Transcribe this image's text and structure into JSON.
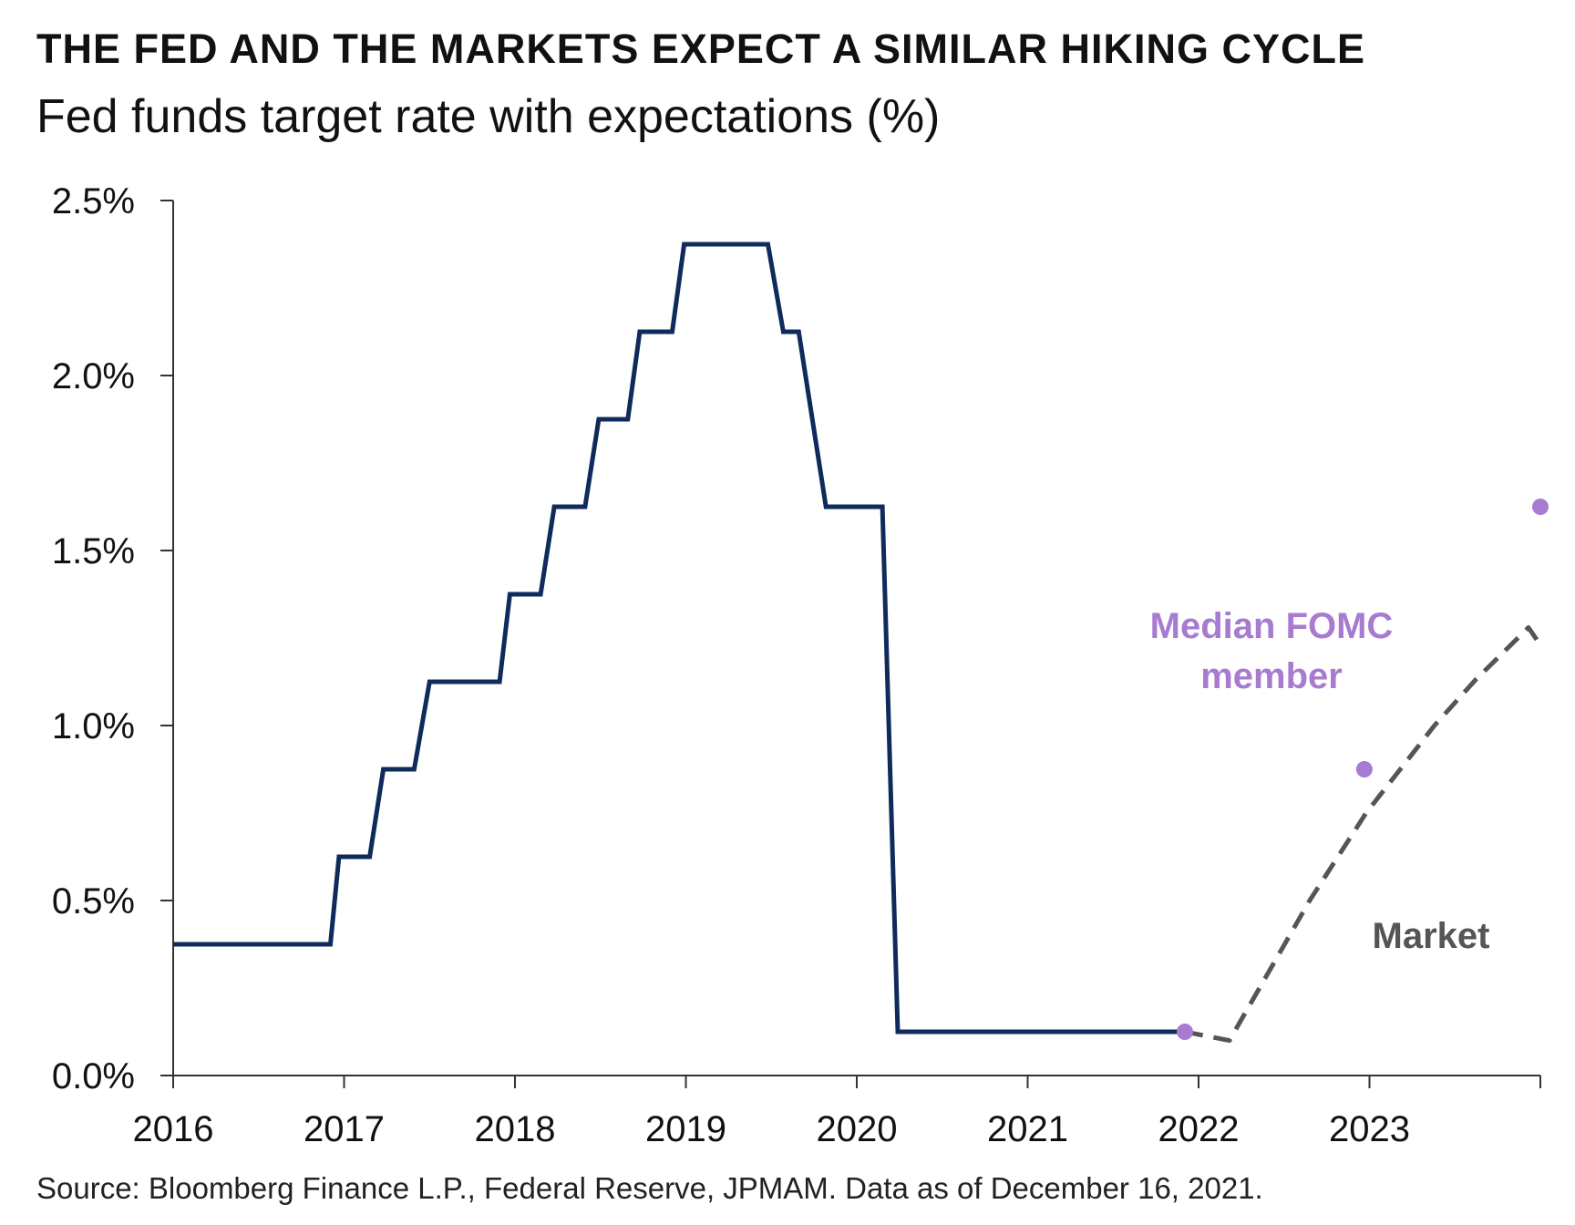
{
  "title": "THE FED AND THE MARKETS EXPECT A SIMILAR HIKING CYCLE",
  "subtitle": "Fed funds target rate with expectations (%)",
  "source": "Source: Bloomberg Finance L.P., Federal Reserve, JPMAM. Data as of December 16, 2021.",
  "colors": {
    "fed_funds": "#0f2b5b",
    "fomc": "#a77bcf",
    "market": "#555555",
    "axis": "#333333"
  },
  "chart_data": {
    "type": "line",
    "x_ticks": [
      "2016",
      "2017",
      "2018",
      "2019",
      "2020",
      "2021",
      "2022",
      "2023"
    ],
    "xlim": [
      2016.0,
      2024.0
    ],
    "y_ticks": [
      "0.0%",
      "0.5%",
      "1.0%",
      "1.5%",
      "2.0%",
      "2.5%"
    ],
    "ylim": [
      0,
      2.5
    ],
    "grid": false,
    "series": [
      {
        "name": "",
        "style": "solid",
        "points": [
          [
            2016.0,
            0.375
          ],
          [
            2016.92,
            0.375
          ],
          [
            2016.97,
            0.625
          ],
          [
            2017.15,
            0.625
          ],
          [
            2017.23,
            0.875
          ],
          [
            2017.41,
            0.875
          ],
          [
            2017.5,
            1.125
          ],
          [
            2017.91,
            1.125
          ],
          [
            2017.97,
            1.375
          ],
          [
            2018.15,
            1.375
          ],
          [
            2018.23,
            1.625
          ],
          [
            2018.41,
            1.625
          ],
          [
            2018.49,
            1.875
          ],
          [
            2018.66,
            1.875
          ],
          [
            2018.73,
            2.125
          ],
          [
            2018.92,
            2.125
          ],
          [
            2018.99,
            2.375
          ],
          [
            2019.48,
            2.375
          ],
          [
            2019.57,
            2.125
          ],
          [
            2019.66,
            2.125
          ],
          [
            2019.82,
            1.625
          ],
          [
            2020.15,
            1.625
          ],
          [
            2020.24,
            0.125
          ],
          [
            2021.92,
            0.125
          ]
        ]
      },
      {
        "name": "Market",
        "style": "dashed",
        "points": [
          [
            2021.92,
            0.125
          ],
          [
            2022.18,
            0.1
          ],
          [
            2022.65,
            0.5
          ],
          [
            2022.98,
            0.75
          ],
          [
            2023.38,
            1.0
          ],
          [
            2023.62,
            1.13
          ],
          [
            2023.93,
            1.28
          ],
          [
            2024.0,
            1.23
          ]
        ]
      },
      {
        "name": "Median FOMC member",
        "style": "dots",
        "points": [
          [
            2021.92,
            0.125
          ],
          [
            2022.97,
            0.875
          ],
          [
            2024.0,
            1.625
          ]
        ]
      }
    ],
    "annotations": [
      {
        "text_lines": [
          "Median FOMC",
          "member"
        ],
        "series": "Median FOMC member"
      },
      {
        "text_lines": [
          "Market"
        ],
        "series": "Market"
      }
    ]
  }
}
